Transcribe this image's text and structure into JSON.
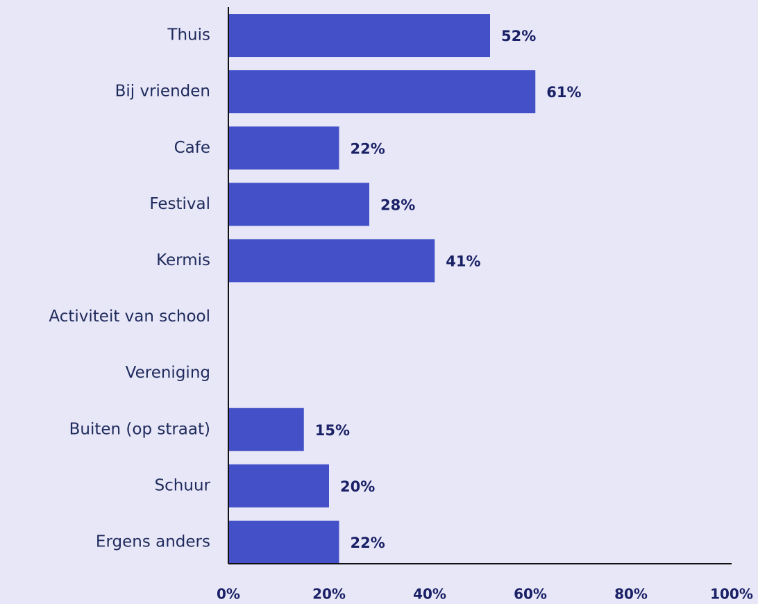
{
  "chart_data": {
    "type": "bar",
    "orientation": "horizontal",
    "categories": [
      "Thuis",
      "Bij vrienden",
      "Cafe",
      "Festival",
      "Kermis",
      "Activiteit van school",
      "Vereniging",
      "Buiten (op straat)",
      "Schuur",
      "Ergens anders"
    ],
    "values": [
      52,
      61,
      22,
      28,
      41,
      null,
      null,
      15,
      20,
      22
    ],
    "value_labels": [
      "52%",
      "61%",
      "22%",
      "28%",
      "41%",
      null,
      null,
      "15%",
      "20%",
      "22%"
    ],
    "color": "#4350c8",
    "xlim": [
      0,
      100
    ],
    "xticks": [
      {
        "value": 0,
        "label": "0%"
      },
      {
        "value": 20,
        "label": "20%"
      },
      {
        "value": 40,
        "label": "40%"
      },
      {
        "value": 60,
        "label": "60%"
      },
      {
        "value": 80,
        "label": "80%"
      },
      {
        "value": 100,
        "label": "100%"
      }
    ],
    "grid": false
  }
}
